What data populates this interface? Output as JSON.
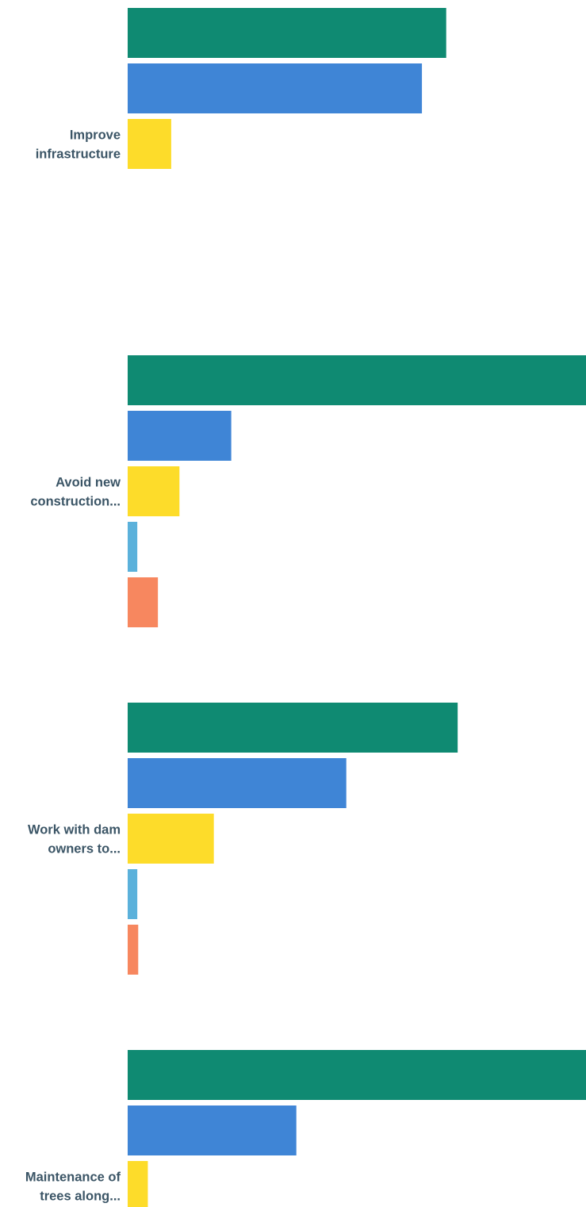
{
  "chart_data": {
    "type": "bar",
    "orientation": "horizontal",
    "categories": [
      {
        "label_lines": [
          "Improve",
          "infrastructure"
        ],
        "values": [
          69.5,
          64.2,
          9.5
        ]
      },
      {
        "label_lines": [
          "Avoid new",
          "construction..."
        ],
        "values": [
          100,
          22.6,
          11.3,
          2.1,
          6.6
        ]
      },
      {
        "label_lines": [
          "Work with dam",
          "owners to..."
        ],
        "values": [
          72.0,
          47.7,
          18.8,
          2.1,
          2.3
        ]
      },
      {
        "label_lines": [
          "Maintenance of",
          "trees along..."
        ],
        "values": [
          100,
          36.8,
          4.4
        ]
      }
    ],
    "series_colors": [
      "#0f8a72",
      "#3f85d6",
      "#fddc2a",
      "#5bb1db",
      "#f7875f"
    ],
    "grid": false,
    "legend": "none"
  }
}
